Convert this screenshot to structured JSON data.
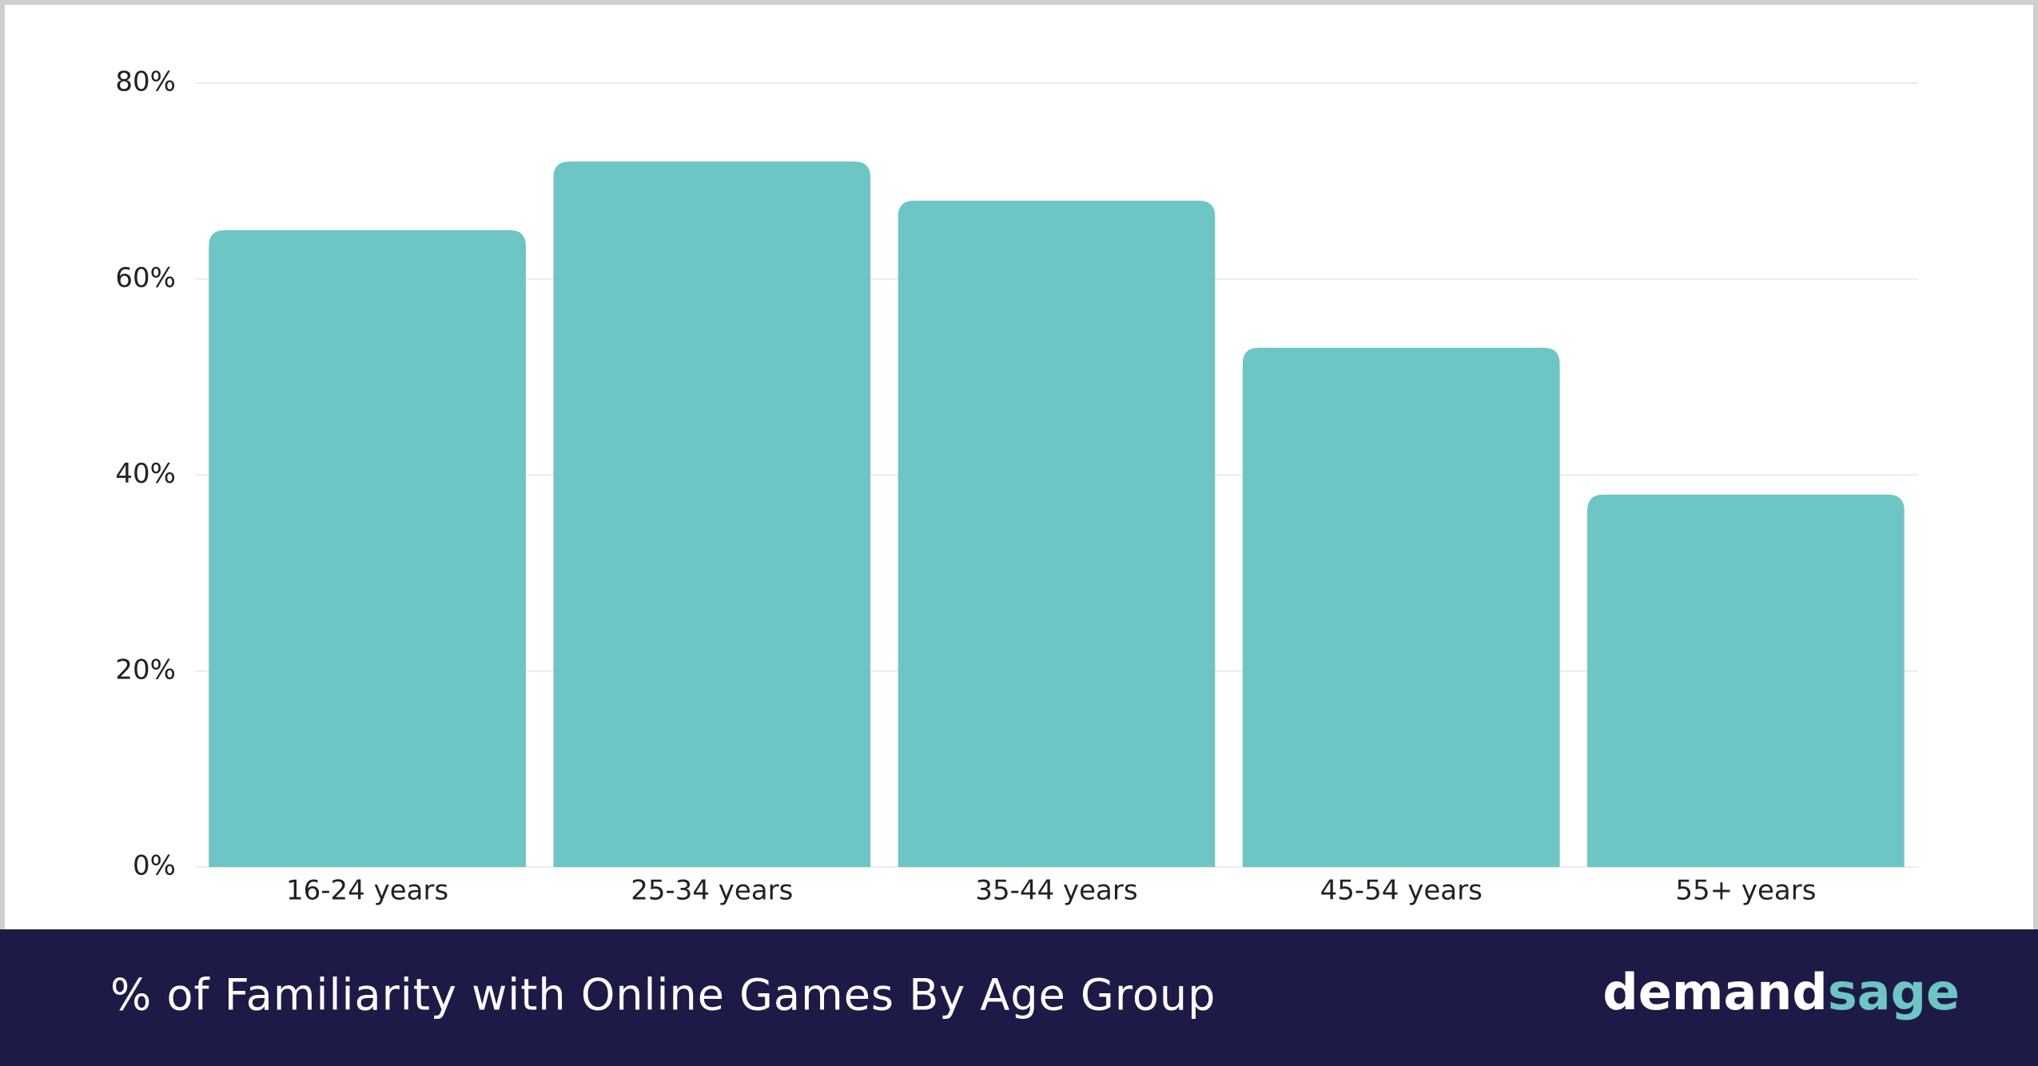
{
  "chart_data": {
    "type": "bar",
    "title": "% of Familiarity with Online Games By Age Group",
    "categories": [
      "16-24 years",
      "25-34 years",
      "35-44 years",
      "45-54 years",
      "55+ years"
    ],
    "values": [
      65,
      72,
      68,
      53,
      38
    ],
    "color": "#6dc6c3",
    "ylim": [
      0,
      80
    ],
    "yticks": [
      {
        "value": 0,
        "label": "0%"
      },
      {
        "value": 20,
        "label": "20%"
      },
      {
        "value": 40,
        "label": "40%"
      },
      {
        "value": 60,
        "label": "60%"
      },
      {
        "value": 80,
        "label": "80%"
      }
    ],
    "grid": true
  },
  "logo": {
    "first": "demand",
    "second": "sage"
  }
}
